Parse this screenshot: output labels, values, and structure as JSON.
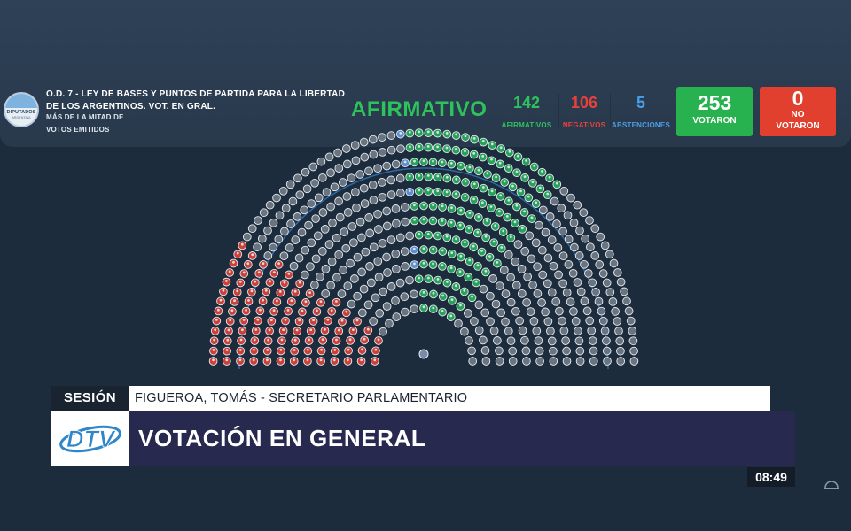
{
  "session": {
    "motion_title": "O.D. 7 - LEY DE BASES Y PUNTOS DE PARTIDA PARA LA LIBERTAD DE LOS ARGENTINOS. VOT. EN GRAL.",
    "majority_line1": "MÁS DE LA MITAD DE",
    "majority_line2": "VOTOS EMITIDOS",
    "logo_text": "DIPUTADOS",
    "logo_sub": "ARGENTINA"
  },
  "result": {
    "label": "AFIRMATIVO",
    "color": "#2ec25d"
  },
  "counts": {
    "afirmativos": {
      "value": "142",
      "label": "AFIRMATIVOS",
      "color": "#2ec25d"
    },
    "negativos": {
      "value": "106",
      "label": "NEGATIVOS",
      "color": "#e8413a"
    },
    "abstenciones": {
      "value": "5",
      "label": "ABSTENCIONES",
      "color": "#4c9ee4"
    },
    "votaron": {
      "value": "253",
      "label": "VOTARON",
      "color": "#27b24f"
    },
    "no_votaron": {
      "value": "0",
      "label_line1": "NO",
      "label_line2": "VOTARON",
      "color": "#e2402f"
    }
  },
  "hemicycle": {
    "rows": 13,
    "seat_colors": {
      "afirmativo": "#27a25a",
      "negativo": "#c9413a",
      "abstencion": "#5b8fd0",
      "ausente": "#6a7480",
      "presidencia": "#7a8aa8"
    }
  },
  "lower_third": {
    "tag": "SESIÓN",
    "speaker": "FIGUEROA, TOMÁS - SECRETARIO PARLAMENTARIO",
    "headline": "VOTACIÓN EN GENERAL",
    "channel_logo": "DTV",
    "clock": "08:49"
  }
}
